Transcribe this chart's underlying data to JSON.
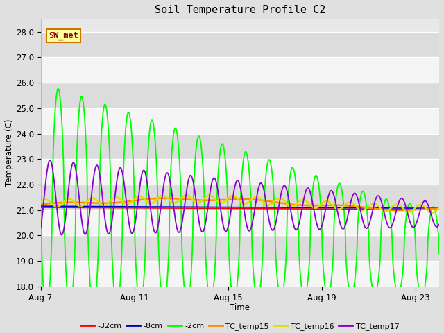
{
  "title": "Soil Temperature Profile C2",
  "xlabel": "Time",
  "ylabel": "Temperature (C)",
  "ylim": [
    18.0,
    28.5
  ],
  "yticks": [
    18.0,
    19.0,
    20.0,
    21.0,
    22.0,
    23.0,
    24.0,
    25.0,
    26.0,
    27.0,
    28.0
  ],
  "xlim_days": [
    0,
    17
  ],
  "xtick_labels": [
    "Aug 7",
    "Aug 11",
    "Aug 15",
    "Aug 19",
    "Aug 23"
  ],
  "xtick_positions": [
    0,
    4,
    8,
    12,
    16
  ],
  "fig_facecolor": "#e0e0e0",
  "plot_bg_light": "#f0f0f0",
  "plot_bg_dark": "#d8d8d8",
  "series_colors": {
    "-32cm": "#ff0000",
    "-8cm": "#0000cc",
    "-2cm": "#00ff00",
    "TC_temp15": "#ff8c00",
    "TC_temp16": "#dddd00",
    "TC_temp17": "#8800cc"
  },
  "annotation_text": "SW_met",
  "legend_labels": [
    "-32cm",
    "-8cm",
    "-2cm",
    "TC_temp15",
    "TC_temp16",
    "TC_temp17"
  ]
}
